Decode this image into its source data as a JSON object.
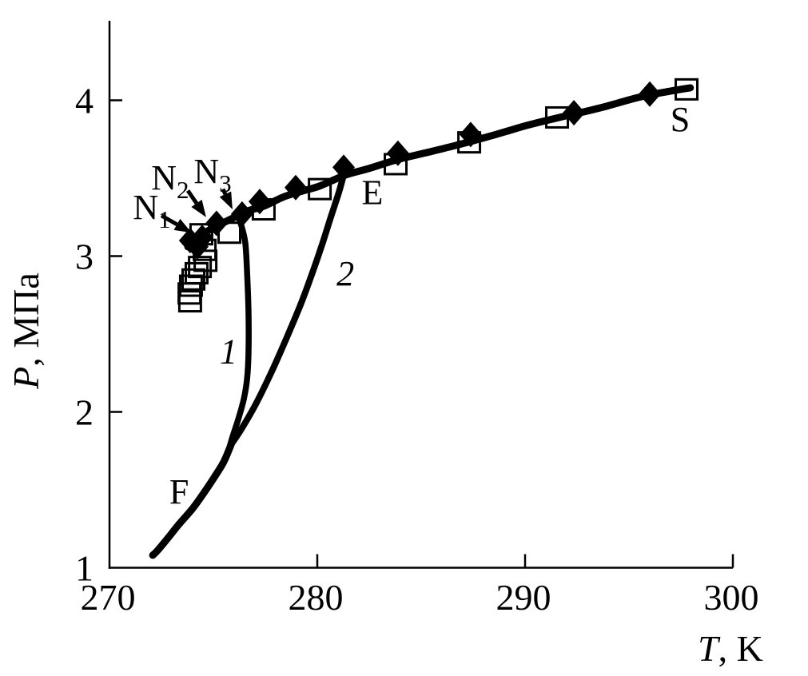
{
  "figure": {
    "background_color": "#ffffff",
    "ink_color": "#000000"
  },
  "chart_data": {
    "type": "line",
    "title": "",
    "xlabel_var": "T",
    "xlabel_unit": ", K",
    "ylabel_var": "P",
    "ylabel_unit": ", МПа",
    "xlim": [
      270,
      300.2
    ],
    "ylim": [
      1,
      4.51
    ],
    "x_ticks": [
      270,
      280,
      290,
      300
    ],
    "x_tick_labels": [
      "270",
      "280",
      "290",
      "300"
    ],
    "y_ticks": [
      1,
      2,
      3,
      4
    ],
    "y_tick_labels": [
      "1",
      "2",
      "3",
      "4"
    ],
    "grid": false,
    "legend": "none",
    "series": [
      {
        "name": "main-three-phase-curve-F-E-S",
        "kind": "curve",
        "points": [
          [
            273.77,
            3.06
          ],
          [
            274.35,
            3.13
          ],
          [
            275.12,
            3.19
          ],
          [
            275.88,
            3.24
          ],
          [
            276.65,
            3.29
          ],
          [
            277.42,
            3.32
          ],
          [
            278.38,
            3.38
          ],
          [
            279.35,
            3.42
          ],
          [
            280.12,
            3.45
          ],
          [
            281.35,
            3.52
          ],
          [
            282.42,
            3.56
          ],
          [
            283.88,
            3.62
          ],
          [
            285.12,
            3.66
          ],
          [
            286.65,
            3.71
          ],
          [
            288.58,
            3.78
          ],
          [
            290.12,
            3.84
          ],
          [
            291.65,
            3.89
          ],
          [
            293.58,
            3.95
          ],
          [
            295.5,
            4.02
          ],
          [
            297.04,
            4.06
          ],
          [
            297.95,
            4.08
          ]
        ]
      },
      {
        "name": "curve-1",
        "kind": "curve",
        "label": "1",
        "points": [
          [
            276.23,
            3.24
          ],
          [
            276.38,
            3.18
          ],
          [
            276.54,
            3.08
          ],
          [
            276.62,
            2.9
          ],
          [
            276.69,
            2.64
          ],
          [
            276.69,
            2.38
          ],
          [
            276.62,
            2.21
          ],
          [
            276.46,
            2.08
          ],
          [
            276.19,
            1.95
          ],
          [
            275.92,
            1.84
          ],
          [
            275.79,
            1.78
          ]
        ]
      },
      {
        "name": "curve-2",
        "kind": "curve",
        "label": "2",
        "points": [
          [
            281.31,
            3.54
          ],
          [
            281.04,
            3.41
          ],
          [
            280.65,
            3.25
          ],
          [
            280.27,
            3.09
          ],
          [
            279.81,
            2.91
          ],
          [
            279.23,
            2.7
          ],
          [
            278.54,
            2.48
          ],
          [
            277.81,
            2.26
          ],
          [
            277.04,
            2.05
          ],
          [
            276.35,
            1.89
          ],
          [
            275.85,
            1.79
          ]
        ]
      },
      {
        "name": "curve-F-lower-branch",
        "kind": "curve",
        "points": [
          [
            275.85,
            1.79
          ],
          [
            275.5,
            1.68
          ],
          [
            275.04,
            1.58
          ],
          [
            274.54,
            1.48
          ],
          [
            274.0,
            1.38
          ],
          [
            273.35,
            1.28
          ],
          [
            272.81,
            1.19
          ],
          [
            272.31,
            1.11
          ],
          [
            272.08,
            1.08
          ]
        ]
      },
      {
        "name": "filled-diamond-points",
        "kind": "scatter",
        "marker": "diamond",
        "points": [
          [
            273.88,
            3.1
          ],
          [
            274.23,
            3.06
          ],
          [
            274.46,
            3.12
          ],
          [
            275.15,
            3.21
          ],
          [
            276.38,
            3.27
          ],
          [
            277.23,
            3.35
          ],
          [
            278.96,
            3.44
          ],
          [
            281.27,
            3.57
          ],
          [
            283.88,
            3.66
          ],
          [
            287.38,
            3.78
          ],
          [
            292.35,
            3.92
          ],
          [
            296.0,
            4.04
          ]
        ]
      },
      {
        "name": "open-square-points",
        "kind": "scatter",
        "marker": "square",
        "points": [
          [
            275.77,
            3.15
          ],
          [
            277.42,
            3.3
          ],
          [
            280.12,
            3.43
          ],
          [
            283.77,
            3.59
          ],
          [
            287.31,
            3.73
          ],
          [
            291.54,
            3.89
          ],
          [
            297.77,
            4.07
          ]
        ]
      },
      {
        "name": "open-square-stack-near-N1",
        "kind": "scatter",
        "marker": "square",
        "points": [
          [
            274.42,
            3.14
          ],
          [
            274.58,
            3.04
          ],
          [
            274.62,
            2.97
          ],
          [
            274.35,
            2.93
          ],
          [
            274.19,
            2.89
          ],
          [
            274.04,
            2.85
          ],
          [
            273.92,
            2.81
          ],
          [
            273.85,
            2.76
          ],
          [
            273.88,
            2.71
          ]
        ]
      }
    ],
    "annotations": {
      "point_labels": [
        {
          "id": "label-E",
          "text": "E",
          "x": 282.65,
          "y": 3.41,
          "italic": false
        },
        {
          "id": "label-S",
          "text": "S",
          "x": 297.46,
          "y": 3.88,
          "italic": false
        },
        {
          "id": "label-F",
          "text": "F",
          "x": 273.35,
          "y": 1.49,
          "italic": false
        },
        {
          "id": "label-curve-1",
          "text": "1",
          "x": 275.73,
          "y": 2.39,
          "italic": true
        },
        {
          "id": "label-curve-2",
          "text": "2",
          "x": 281.35,
          "y": 2.89,
          "italic": true
        }
      ],
      "arrow_labels": [
        {
          "id": "label-N1",
          "text": "N",
          "sub": "1",
          "label_x": 272.04,
          "label_y": 3.31,
          "arrow_from": [
            272.5,
            3.26
          ],
          "arrow_to": [
            273.95,
            3.15
          ]
        },
        {
          "id": "label-N2",
          "text": "N",
          "sub": "2",
          "label_x": 272.92,
          "label_y": 3.5,
          "arrow_from": [
            273.77,
            3.42
          ],
          "arrow_to": [
            274.65,
            3.25
          ]
        },
        {
          "id": "label-N3",
          "text": "N",
          "sub": "3",
          "label_x": 274.96,
          "label_y": 3.54,
          "arrow_from": [
            275.46,
            3.43
          ],
          "arrow_to": [
            275.92,
            3.3
          ]
        }
      ]
    }
  }
}
